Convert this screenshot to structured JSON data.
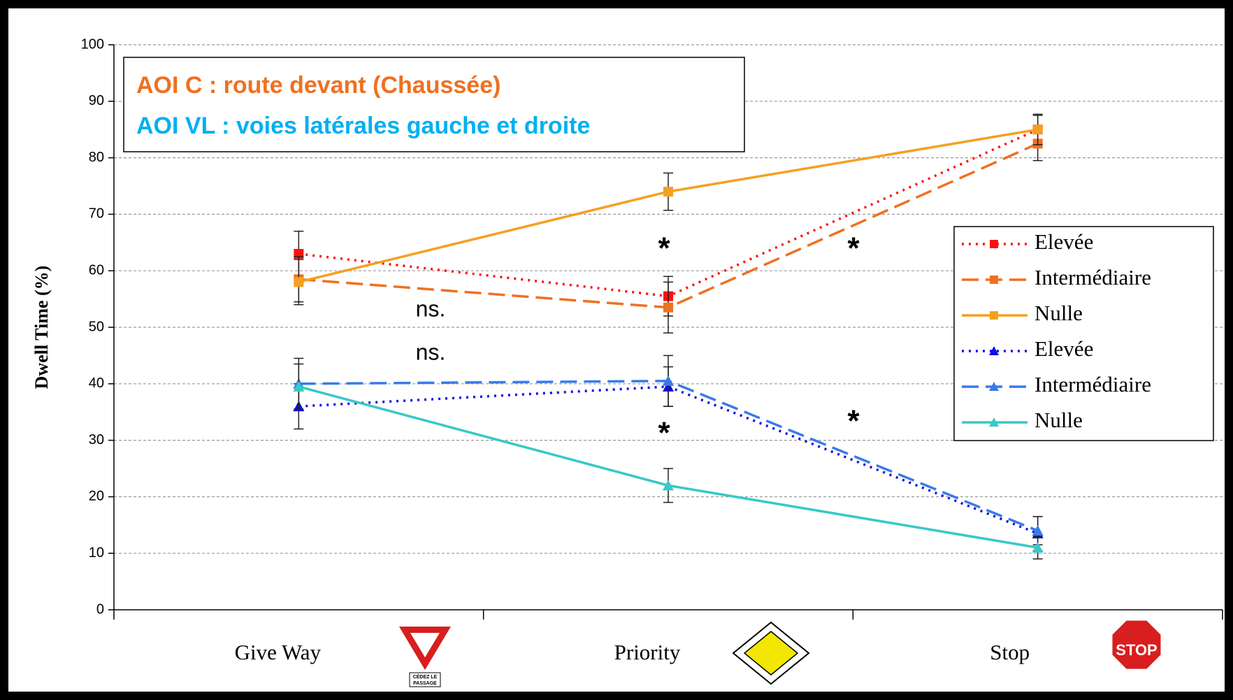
{
  "chart_data": {
    "type": "line",
    "y_label": "Dwell Time (%)",
    "title_lines": [
      {
        "text": "AOI C : route devant (Chaussée)",
        "color": "#f07020"
      },
      {
        "text": "AOI VL : voies latérales gauche et droite",
        "color": "#00b0f0"
      }
    ],
    "categories": [
      "Give Way",
      "Priority",
      "Stop"
    ],
    "sign_texts": {
      "yield": [
        "CÉDEZ LE",
        "PASSAGE"
      ],
      "stop": "STOP"
    },
    "ylim": [
      0,
      100
    ],
    "yticks": [
      0,
      10,
      20,
      30,
      40,
      50,
      60,
      70,
      80,
      90,
      100
    ],
    "grid": true,
    "legend": "right",
    "series": [
      {
        "name": "Elevée",
        "color": "#ff1010",
        "style": "dotted",
        "marker": "square",
        "values": [
          63,
          55.5,
          85
        ],
        "errors": [
          4,
          3.5,
          2.5
        ]
      },
      {
        "name": "Intermédiaire",
        "color": "#f07020",
        "style": "dashed",
        "marker": "square",
        "values": [
          58.5,
          53.5,
          82.5
        ],
        "errors": [
          4,
          4.5,
          3
        ]
      },
      {
        "name": "Nulle",
        "color": "#f5a020",
        "style": "solid",
        "marker": "square",
        "values": [
          58,
          74,
          85
        ],
        "errors": [
          4,
          3.3,
          2.7
        ]
      },
      {
        "name": "Elevée",
        "color": "#1010e0",
        "style": "dotted",
        "marker": "triangle",
        "values": [
          36,
          39.5,
          13.5
        ],
        "errors": [
          4,
          3.5,
          3
        ]
      },
      {
        "name": "Intermédiaire",
        "color": "#3a7ae8",
        "style": "dashed",
        "marker": "triangle",
        "values": [
          40,
          40.5,
          14
        ],
        "errors": [
          4.5,
          4.5,
          2.5
        ]
      },
      {
        "name": "Nulle",
        "color": "#38c8c8",
        "style": "solid",
        "marker": "triangle",
        "values": [
          39.5,
          22,
          11
        ],
        "errors": [
          4,
          3,
          2
        ]
      }
    ],
    "annotations": [
      "ns.",
      "ns.",
      "*",
      "*",
      "*",
      "*"
    ]
  }
}
